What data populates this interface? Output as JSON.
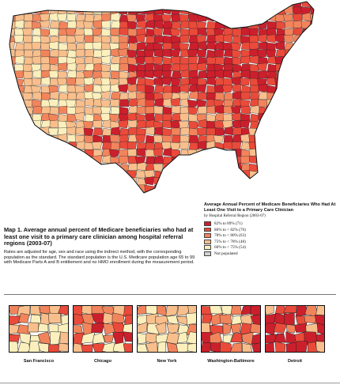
{
  "legend": {
    "title": "Average Annual Percent of Medicare Beneficiaries Who Had At Least One Visit to a Primary Care Clinician",
    "subtitle": "by Hospital Referral Region (2003-07)",
    "items": [
      {
        "label": "82% to  89%  (71)",
        "color": "#cc1f2c"
      },
      {
        "label": "80% to < 82%  (70)",
        "color": "#ea4a3a"
      },
      {
        "label": "78% to < 80%  (63)",
        "color": "#f2845c"
      },
      {
        "label": "75% to < 78%  (48)",
        "color": "#f8bf8c"
      },
      {
        "label": "60% to < 75%  (54)",
        "color": "#fbf0bd"
      },
      {
        "label": "Not populated",
        "color": "#d2d2d2"
      }
    ]
  },
  "caption": {
    "title": "Map 1. Average annual percent of Medicare beneficiaries who had at least one visit to a primary care clinician among hospital referral regions (2003-07)",
    "body": "Rates are adjusted for age, sex and race using the indirect method, with the corresponding population as the standard. The standard population is the U.S. Medicare population age 65 to 99 with Medicare Parts A and B entitlement and no HMO enrollment during the measurement period."
  },
  "insets": [
    {
      "label": "San Francisco"
    },
    {
      "label": "Chicago"
    },
    {
      "label": "New York"
    },
    {
      "label": "Washington-Baltimore"
    },
    {
      "label": "Detroit"
    }
  ]
}
